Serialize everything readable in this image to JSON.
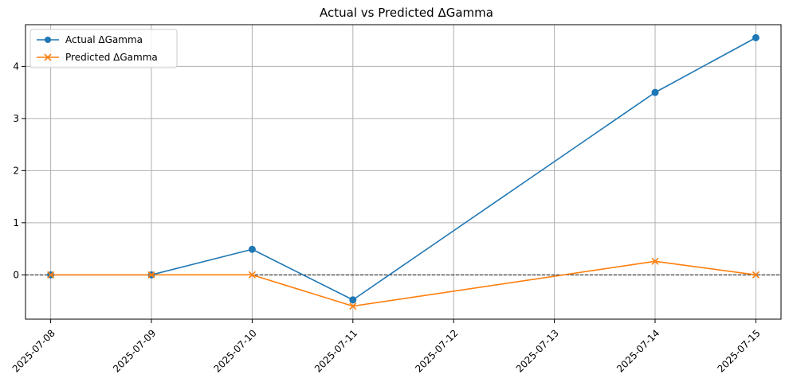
{
  "chart_data": {
    "type": "line",
    "title": "Actual vs Predicted ΔGamma",
    "xlabel": "",
    "ylabel": "",
    "x": [
      "2025-07-08",
      "2025-07-09",
      "2025-07-10",
      "2025-07-11",
      "2025-07-14",
      "2025-07-15"
    ],
    "x_ticks": [
      "2025-07-08",
      "2025-07-09",
      "2025-07-10",
      "2025-07-11",
      "2025-07-12",
      "2025-07-13",
      "2025-07-14",
      "2025-07-15"
    ],
    "y_ticks": [
      "0",
      "1",
      "2",
      "3",
      "4"
    ],
    "xlim": [
      "2025-07-07 18:00",
      "2025-07-15 06:00"
    ],
    "ylim": [
      -0.85,
      4.8
    ],
    "grid": true,
    "legend_position": "upper-left",
    "reference_line": {
      "y": 0,
      "style": "dashed",
      "color": "#000000"
    },
    "series": [
      {
        "name": "Actual ΔGamma",
        "values": [
          0.0,
          0.0,
          0.49,
          -0.48,
          3.5,
          4.55
        ],
        "color": "#1f77b4",
        "marker": "circle"
      },
      {
        "name": "Predicted ΔGamma",
        "values": [
          0.0,
          0.0,
          0.0,
          -0.6,
          0.26,
          0.0
        ],
        "color": "#ff7f0e",
        "marker": "x"
      }
    ]
  }
}
